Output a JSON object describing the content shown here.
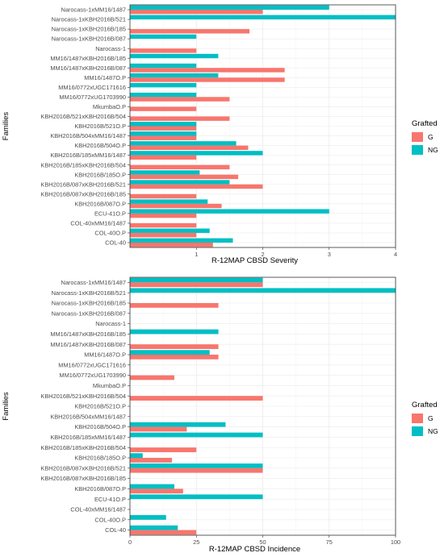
{
  "colors": {
    "G": "#F8766D",
    "NG": "#00BFC4",
    "grid_major": "#ebebeb",
    "grid_minor": "#f5f5f5",
    "panel_border": "#333333"
  },
  "chart_data": [
    {
      "type": "bar",
      "orientation": "horizontal",
      "title": "",
      "xlabel": "R-12MAP CBSD Severity",
      "ylabel": "Families",
      "xlim": [
        0,
        4
      ],
      "xticks": [
        "1",
        "2",
        "3",
        "4"
      ],
      "grid": true,
      "legend": {
        "title": "Grafted",
        "position": "right",
        "entries": [
          "G",
          "NG"
        ]
      },
      "categories": [
        "Narocass-1xMM16/1487",
        "Narocass-1xKBH2016B/521",
        "Narocass-1xKBH2016B/185",
        "Narocass-1xKBH2016B/087",
        "Narocass-1",
        "MM16/1487xKBH2016B/185",
        "MM16/1487xKBH2016B/087",
        "MM16/1487O.P",
        "MM16/0772xUGC171616",
        "MM16/0772xUG1703990",
        "MkumbaO.P",
        "KBH2016B/521xKBH2016B/504",
        "KBH2016B/521O.P",
        "KBH2016B/504xMM16/1487",
        "KBH2016B/504O.P",
        "KBH2016B/185xMM16/1487",
        "KBH2016B/185xKBH2016B/504",
        "KBH2016B/185O.P",
        "KBH2016B/087xKBH2016B/521",
        "KBH2016B/087xKBH2016B/185",
        "KBH2016B/087O.P",
        "ECU-41O.P",
        "COL-40xMM16/1487",
        "COL-40O.P",
        "COL-40"
      ],
      "series": [
        {
          "name": "G",
          "values": [
            2.0,
            null,
            1.8,
            null,
            1.0,
            null,
            2.33,
            2.33,
            null,
            1.5,
            1.0,
            1.5,
            1.0,
            1.0,
            1.78,
            1.0,
            1.5,
            1.63,
            2.0,
            1.0,
            1.38,
            1.0,
            1.0,
            1.0,
            1.25
          ]
        },
        {
          "name": "NG",
          "values": [
            3.0,
            4.0,
            null,
            1.0,
            null,
            1.33,
            1.0,
            1.33,
            1.0,
            1.0,
            null,
            null,
            1.0,
            1.0,
            1.6,
            2.0,
            null,
            1.05,
            1.5,
            null,
            1.17,
            3.0,
            null,
            1.2,
            1.55
          ]
        }
      ]
    },
    {
      "type": "bar",
      "orientation": "horizontal",
      "title": "",
      "xlabel": "R-12MAP CBSD Incidence",
      "ylabel": "Families",
      "xlim": [
        0,
        100
      ],
      "xticks": [
        "0",
        "25",
        "50",
        "75",
        "100"
      ],
      "grid": true,
      "legend": {
        "title": "Grafted",
        "position": "right",
        "entries": [
          "G",
          "NG"
        ]
      },
      "categories": [
        "Narocass-1xMM16/1487",
        "Narocass-1xKBH2016B/521",
        "Narocass-1xKBH2016B/185",
        "Narocass-1xKBH2016B/087",
        "Narocass-1",
        "MM16/1487xKBH2016B/185",
        "MM16/1487xKBH2016B/087",
        "MM16/1487O.P",
        "MM16/0772xUGC171616",
        "MM16/0772xUG1703990",
        "MkumbaO.P",
        "KBH2016B/521xKBH2016B/504",
        "KBH2016B/521O.P",
        "KBH2016B/504xMM16/1487",
        "KBH2016B/504O.P",
        "KBH2016B/185xMM16/1487",
        "KBH2016B/185xKBH2016B/504",
        "KBH2016B/185O.P",
        "KBH2016B/087xKBH2016B/521",
        "KBH2016B/087xKBH2016B/185",
        "KBH2016B/087O.P",
        "ECU-41O.P",
        "COL-40xMM16/1487",
        "COL-40O.P",
        "COL-40"
      ],
      "series": [
        {
          "name": "G",
          "values": [
            50,
            null,
            33.3,
            null,
            0,
            null,
            33.3,
            33.3,
            null,
            16.7,
            null,
            50,
            null,
            null,
            21.4,
            null,
            25,
            15.8,
            50,
            null,
            20,
            null,
            null,
            null,
            25
          ]
        },
        {
          "name": "NG",
          "values": [
            50,
            100,
            null,
            0,
            null,
            33.3,
            0,
            30,
            0,
            0,
            null,
            null,
            0,
            0,
            36,
            50,
            null,
            4.8,
            50,
            null,
            16.7,
            50,
            null,
            13.6,
            18
          ]
        }
      ]
    }
  ]
}
